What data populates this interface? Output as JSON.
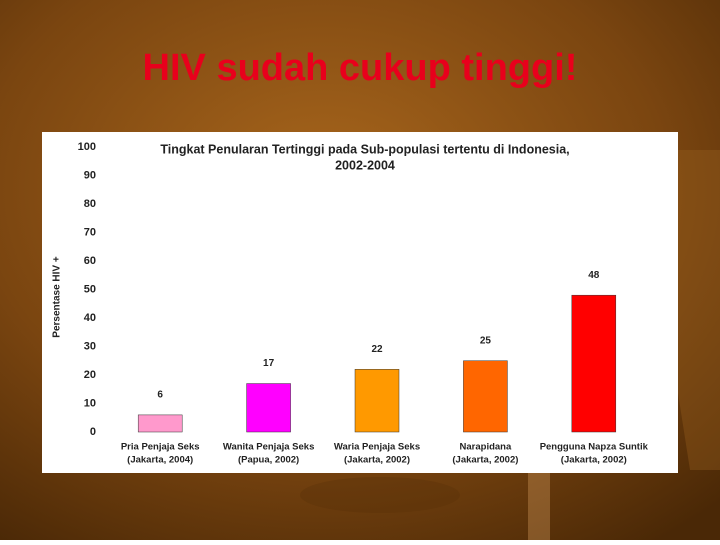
{
  "slide_title": "HIV sudah cukup tinggi!",
  "chart_data": {
    "type": "bar",
    "title": [
      "Tingkat Penularan Tertinggi  pada Sub-populasi tertentu di Indonesia,",
      "2002-2004"
    ],
    "y_label": "Persentase HIV +",
    "categories": [
      [
        "Pria Penjaja Seks",
        "(Jakarta, 2004)"
      ],
      [
        "Wanita Penjaja Seks",
        "(Papua, 2002)"
      ],
      [
        "Waria Penjaja Seks",
        "(Jakarta, 2002)"
      ],
      [
        "Narapidana",
        "(Jakarta, 2002)"
      ],
      [
        "Pengguna Napza Suntik",
        "(Jakarta, 2002)"
      ]
    ],
    "values": [
      6,
      17,
      22,
      25,
      48
    ],
    "colors": [
      "#ff99cc",
      "#ff00ff",
      "#ff9900",
      "#ff6600",
      "#ff0000"
    ],
    "ylim": [
      0,
      100
    ],
    "yticks": [
      0,
      10,
      20,
      30,
      40,
      50,
      60,
      70,
      80,
      90,
      100
    ],
    "grid": false
  }
}
